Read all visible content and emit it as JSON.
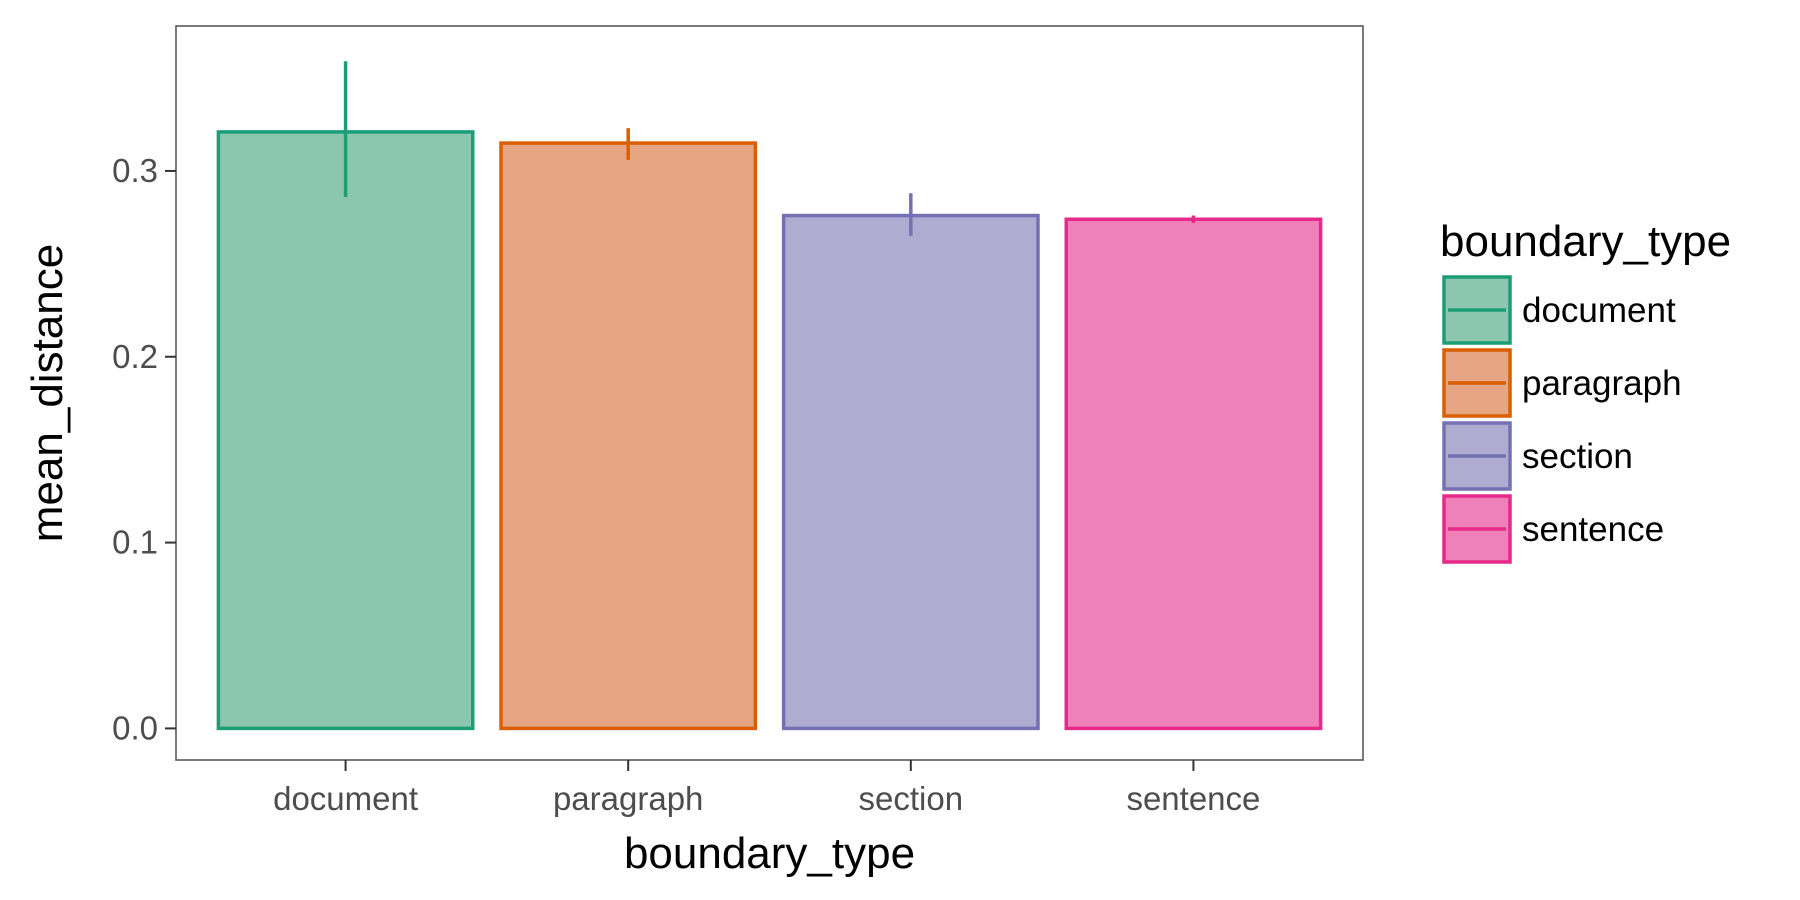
{
  "chart_data": {
    "type": "bar",
    "categories": [
      "document",
      "paragraph",
      "section",
      "sentence"
    ],
    "values": [
      0.321,
      0.315,
      0.276,
      0.274
    ],
    "error_low": [
      0.286,
      0.306,
      0.265,
      0.272
    ],
    "error_high": [
      0.359,
      0.323,
      0.288,
      0.276
    ],
    "xlabel": "boundary_type",
    "ylabel": "mean_distance",
    "ylim": [
      -0.017,
      0.378
    ],
    "yticks": [
      0.0,
      0.1,
      0.2,
      0.3
    ],
    "ytick_labels": [
      "0.0",
      "0.1",
      "0.2",
      "0.3"
    ],
    "grid": false,
    "legend": {
      "title": "boundary_type",
      "placement": "right",
      "entries": [
        "document",
        "paragraph",
        "section",
        "sentence"
      ]
    },
    "colors": {
      "fill": [
        "#8dc6af",
        "#e6a583",
        "#b0acd1",
        "#ef80ba"
      ],
      "stroke": [
        "#1b9e77",
        "#d95f02",
        "#7570b3",
        "#e7298a"
      ]
    }
  }
}
